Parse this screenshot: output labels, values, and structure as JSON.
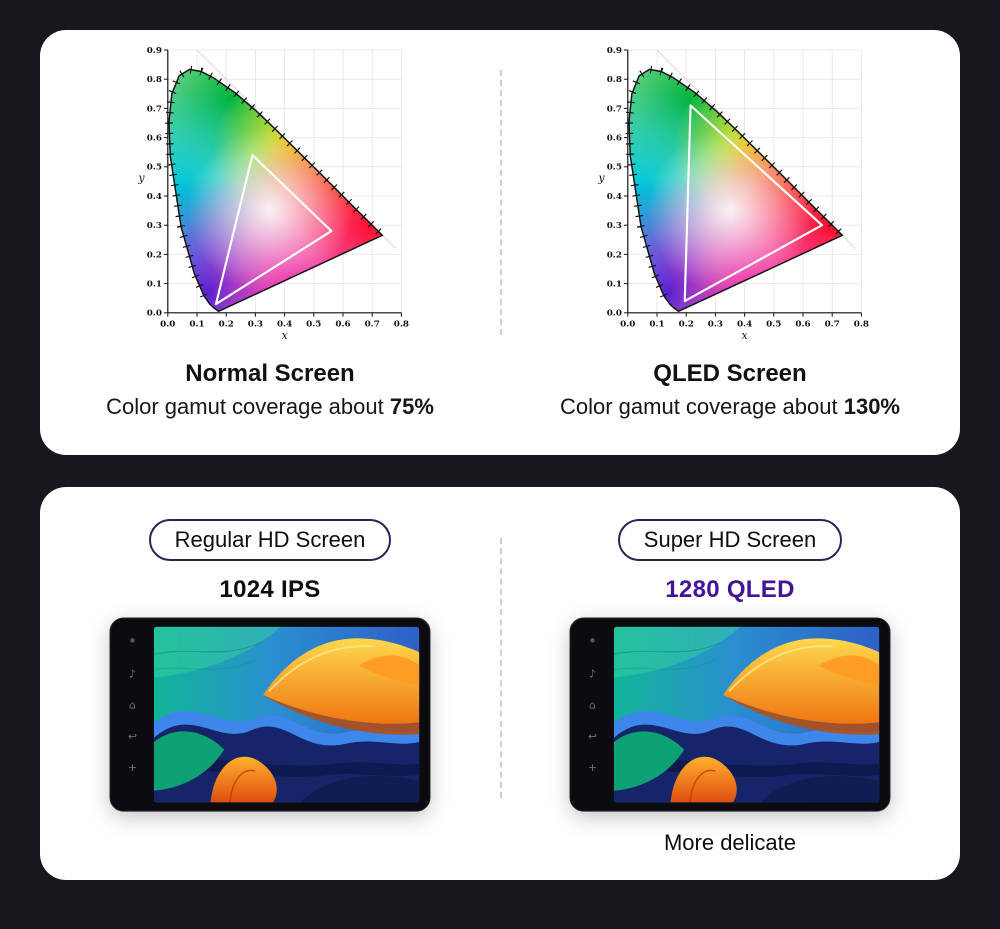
{
  "colors": {
    "page_bg": "#17171d",
    "card_bg": "#ffffff",
    "qled_purple": "#41149a",
    "pill_border": "#2b2357",
    "divider": "#cfcfcf"
  },
  "gamut_card": {
    "left": {
      "title": "Normal Screen",
      "subtitle_prefix": "Color gamut coverage about ",
      "subtitle_value": "75%"
    },
    "right": {
      "title": "QLED Screen",
      "subtitle_prefix": "Color gamut coverage about ",
      "subtitle_value": "130%"
    }
  },
  "cie_axis": {
    "x_label": "x",
    "y_label": "y",
    "x_ticks": [
      "0.0",
      "0.1",
      "0.2",
      "0.3",
      "0.4",
      "0.5",
      "0.6",
      "0.7",
      "0.8"
    ],
    "y_ticks": [
      "0.0",
      "0.1",
      "0.2",
      "0.3",
      "0.4",
      "0.5",
      "0.6",
      "0.7",
      "0.8",
      "0.9"
    ]
  },
  "gamut_triangles": {
    "normal": [
      [
        0.165,
        0.03
      ],
      [
        0.29,
        0.54
      ],
      [
        0.56,
        0.28
      ]
    ],
    "qled": [
      [
        0.195,
        0.04
      ],
      [
        0.215,
        0.71
      ],
      [
        0.665,
        0.3
      ]
    ]
  },
  "screen_card": {
    "left": {
      "badge": "Regular HD Screen",
      "spec": "1024 IPS"
    },
    "right": {
      "badge": "Super HD Screen",
      "spec": "1280 QLED",
      "note": "More delicate"
    }
  },
  "icons": {
    "music": "♪",
    "home": "⌂",
    "back": "↩",
    "plus": "+"
  }
}
